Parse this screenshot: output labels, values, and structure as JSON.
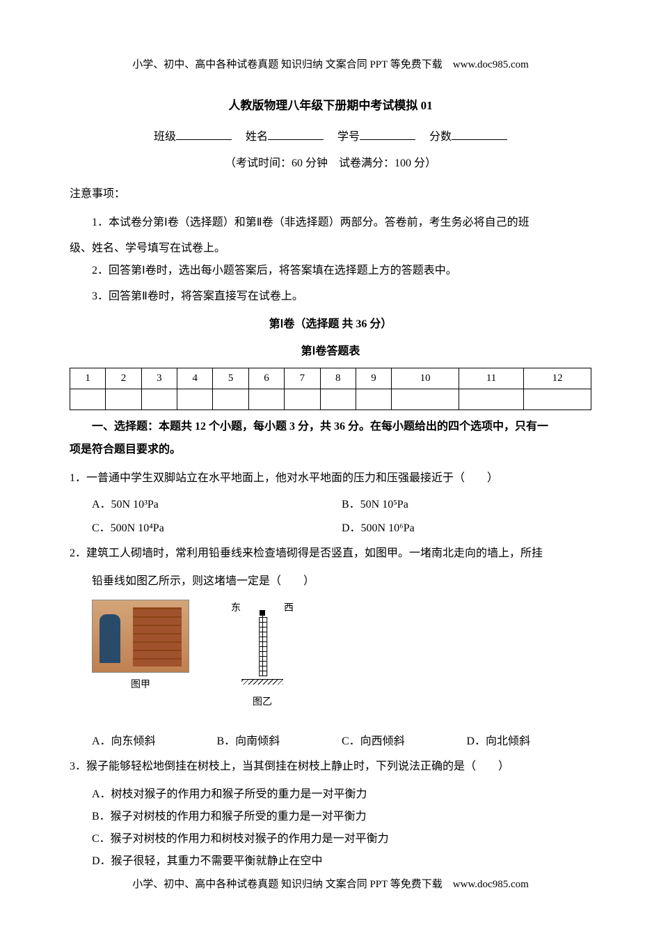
{
  "header": "小学、初中、高中各种试卷真题 知识归纳 文案合同 PPT 等免费下载　www.doc985.com",
  "title": "人教版物理八年级下册期中考试模拟 01",
  "form": {
    "class_label": "班级",
    "name_label": "姓名",
    "id_label": "学号",
    "score_label": "分数"
  },
  "exam_info": "（考试时间：60 分钟　试卷满分：100 分）",
  "notice_label": "注意事项：",
  "notices": [
    "1．本试卷分第Ⅰ卷（选择题）和第Ⅱ卷（非选择题）两部分。答卷前，考生务必将自己的班",
    "2．回答第Ⅰ卷时，选出每小题答案后，将答案填在选择题上方的答题表中。",
    "3．回答第Ⅱ卷时，将答案直接写在试卷上。"
  ],
  "notice1_cont": "级、姓名、学号填写在试卷上。",
  "section1_title": "第Ⅰ卷（选择题 共 36 分）",
  "answer_sheet_title": "第Ⅰ卷答题表",
  "table_headers": [
    "1",
    "2",
    "3",
    "4",
    "5",
    "6",
    "7",
    "8",
    "9",
    "10",
    "11",
    "12"
  ],
  "instruction": "一、选择题：本题共 12 个小题，每小题 3 分，共 36 分。在每小题给出的四个选项中，只有一",
  "instruction_cont": "项是符合题目要求的。",
  "q1": {
    "text": "1．一普通中学生双脚站立在水平地面上，他对水平地面的压力和压强最接近于（　　）",
    "a": "A．50N  10³Pa",
    "b": "B．50N  10⁵Pa",
    "c": "C．500N  10⁴Pa",
    "d": "D．500N  10⁶Pa"
  },
  "q2": {
    "text": "2．建筑工人砌墙时，常利用铅垂线来检查墙砌得是否竖直，如图甲。一堵南北走向的墙上，所挂",
    "text2": "铅垂线如图乙所示，则这堵墙一定是（　　）",
    "east": "东",
    "west": "西",
    "caption_jia": "图甲",
    "caption_yi": "图乙",
    "a": "A．向东倾斜",
    "b": "B．向南倾斜",
    "c": "C．向西倾斜",
    "d": "D．向北倾斜"
  },
  "q3": {
    "text": "3．猴子能够轻松地倒挂在树枝上，当其倒挂在树枝上静止时，下列说法正确的是（　　）",
    "a": "A．树枝对猴子的作用力和猴子所受的重力是一对平衡力",
    "b": "B．猴子对树枝的作用力和猴子所受的重力是一对平衡力",
    "c": "C．猴子对树枝的作用力和树枝对猴子的作用力是一对平衡力",
    "d": "D．猴子很轻，其重力不需要平衡就静止在空中"
  },
  "footer": "小学、初中、高中各种试卷真题 知识归纳 文案合同 PPT 等免费下载　www.doc985.com"
}
